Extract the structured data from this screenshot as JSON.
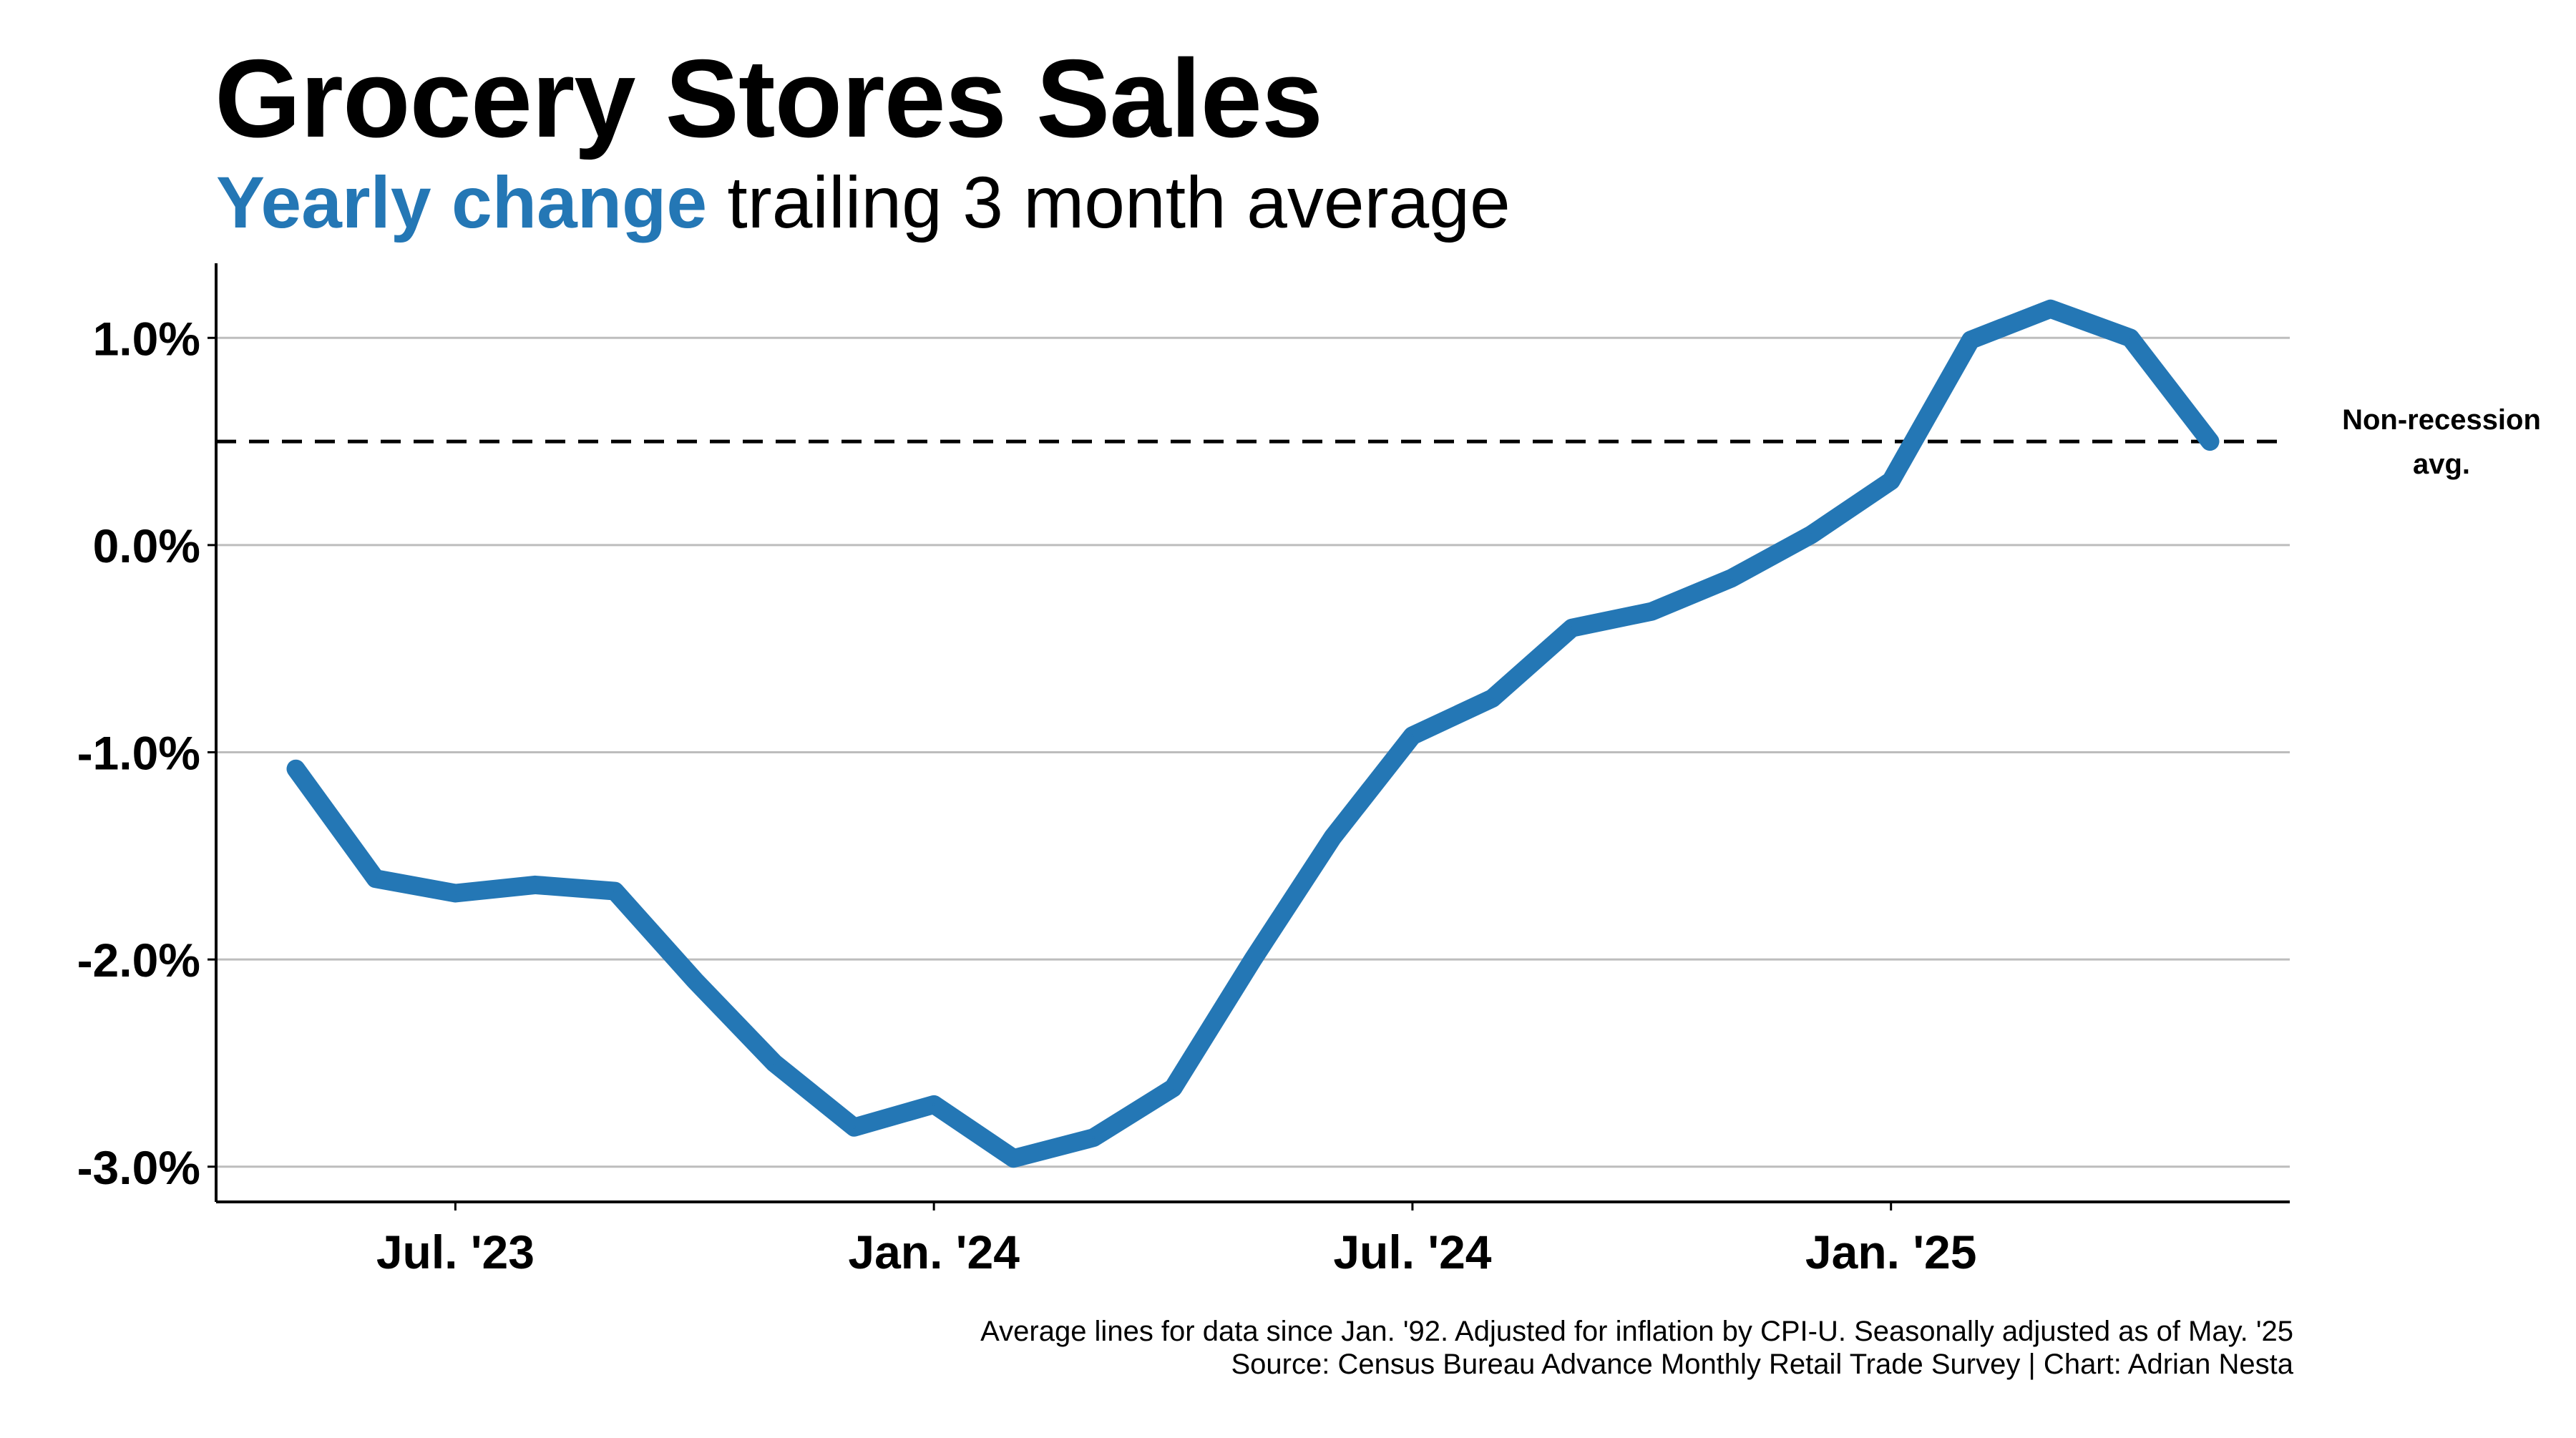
{
  "chart_data": {
    "type": "line",
    "title": "Grocery Stores Sales",
    "subtitle_highlight": "Yearly change",
    "subtitle_rest": " trailing 3 month average",
    "x": [
      "2023-05",
      "2023-06",
      "2023-07",
      "2023-08",
      "2023-09",
      "2023-10",
      "2023-11",
      "2023-12",
      "2024-01",
      "2024-02",
      "2024-03",
      "2024-04",
      "2024-05",
      "2024-06",
      "2024-07",
      "2024-08",
      "2024-09",
      "2024-10",
      "2024-11",
      "2024-12",
      "2025-01",
      "2025-02",
      "2025-03",
      "2025-04",
      "2025-05"
    ],
    "series": [
      {
        "values": [
          -1.08,
          -1.61,
          -1.68,
          -1.64,
          -1.67,
          -2.1,
          -2.5,
          -2.81,
          -2.7,
          -2.96,
          -2.86,
          -2.62,
          -2.0,
          -1.41,
          -0.92,
          -0.74,
          -0.4,
          -0.32,
          -0.16,
          0.05,
          0.31,
          0.99,
          1.14,
          1.0,
          0.5
        ],
        "color": "#2477b5"
      }
    ],
    "reference_line": {
      "value": 0.5,
      "label_line1": "Non-recession",
      "label_line2": "avg."
    },
    "ylim": [
      -3.17,
      1.36
    ],
    "y_ticks": [
      1.0,
      0.0,
      -1.0,
      -2.0,
      -3.0
    ],
    "y_tick_labels": [
      "1.0%",
      "0.0%",
      "-1.0%",
      "-2.0%",
      "-3.0%"
    ],
    "x_ticks": [
      "2023-07",
      "2024-01",
      "2024-07",
      "2025-01"
    ],
    "x_tick_labels": [
      "Jul. '23",
      "Jan. '24",
      "Jul. '24",
      "Jan. '25"
    ],
    "xlim": [
      "2023-04",
      "2025-06"
    ],
    "grid": "horizontal",
    "xlabel": "",
    "ylabel": ""
  },
  "footer": {
    "line1": "Average lines for data since Jan. '92. Adjusted for inflation by CPI-U. Seasonally adjusted as of May. '25",
    "line2": "Source: Census Bureau Advance Monthly Retail Trade Survey | Chart: Adrian Nesta"
  }
}
